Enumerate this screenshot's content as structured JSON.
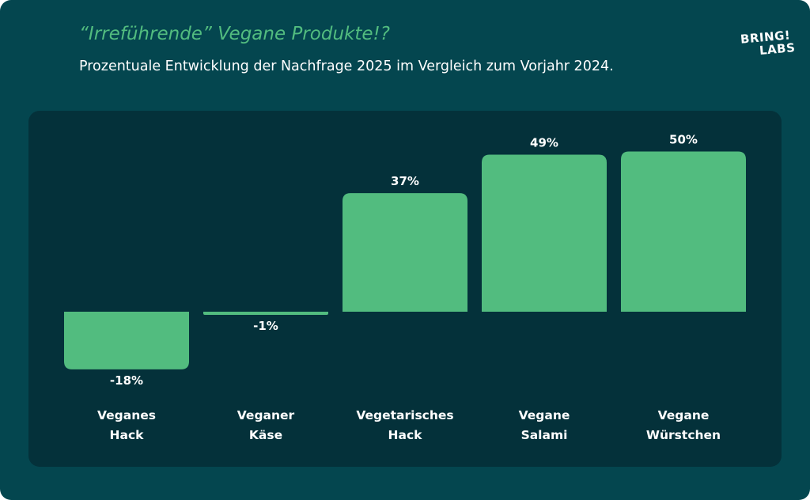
{
  "header": {
    "title": "“Irreführende” Vegane Produkte!?",
    "subtitle": "Prozentuale Entwicklung der Nachfrage 2025 im Vergleich zum Vorjahr 2024.",
    "logo": {
      "line1": "BRING!",
      "line2": "LABS"
    }
  },
  "colors": {
    "background": "#04464f",
    "panel": "#04313a",
    "bar": "#52bc7f",
    "title": "#52bc7f",
    "text": "#ffffff"
  },
  "chart_data": {
    "type": "bar",
    "categories": [
      [
        "Veganes",
        "Hack"
      ],
      [
        "Veganer",
        "Käse"
      ],
      [
        "Vegetarisches",
        "Hack"
      ],
      [
        "Vegane",
        "Salami"
      ],
      [
        "Vegane",
        "Würstchen"
      ]
    ],
    "values": [
      -18,
      -1,
      37,
      49,
      50
    ],
    "value_labels": [
      "-18%",
      "-1%",
      "37%",
      "49%",
      "50%"
    ],
    "unit": "%",
    "grid": false,
    "legend": "none"
  }
}
